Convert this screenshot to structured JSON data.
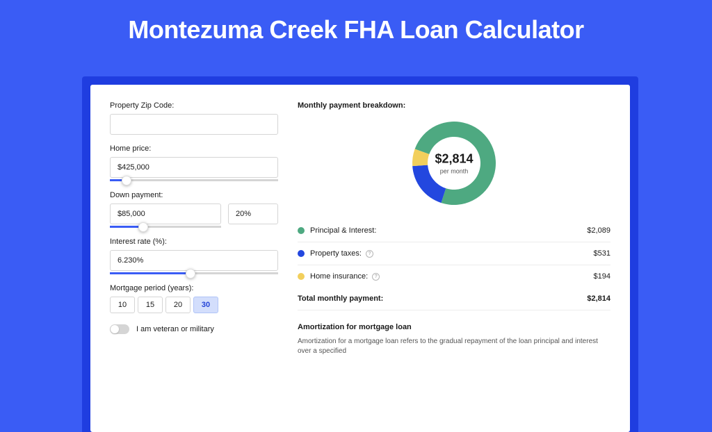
{
  "page": {
    "title": "Montezuma Creek FHA Loan Calculator",
    "background_color": "#3a5cf5",
    "wrapper_color": "#1f3de0"
  },
  "form": {
    "zip": {
      "label": "Property Zip Code:",
      "value": ""
    },
    "home_price": {
      "label": "Home price:",
      "value": "$425,000",
      "slider_pct": 10
    },
    "down_payment": {
      "label": "Down payment:",
      "value": "$85,000",
      "pct": "20%",
      "slider_pct": 30
    },
    "interest_rate": {
      "label": "Interest rate (%):",
      "value": "6.230%",
      "slider_pct": 48
    },
    "mortgage_period": {
      "label": "Mortgage period (years):",
      "options": [
        "10",
        "15",
        "20",
        "30"
      ],
      "selected": "30"
    },
    "veteran": {
      "label": "I am veteran or military",
      "on": false
    }
  },
  "breakdown": {
    "title": "Monthly payment breakdown:",
    "donut": {
      "amount": "$2,814",
      "sub": "per month",
      "segments": [
        {
          "value": 2089,
          "color": "#4ea981",
          "start_angle": -70,
          "sweep": 268
        },
        {
          "value": 531,
          "color": "#2347df",
          "start_angle": 198,
          "sweep": 68
        },
        {
          "value": 194,
          "color": "#f2cf5c",
          "start_angle": 266,
          "sweep": 24
        }
      ],
      "inner_radius": 38,
      "outer_radius": 60
    },
    "items": [
      {
        "label": "Principal & Interest:",
        "value": "$2,089",
        "color": "#4ea981",
        "info": false
      },
      {
        "label": "Property taxes:",
        "value": "$531",
        "color": "#2347df",
        "info": true
      },
      {
        "label": "Home insurance:",
        "value": "$194",
        "color": "#f2cf5c",
        "info": true
      }
    ],
    "total": {
      "label": "Total monthly payment:",
      "value": "$2,814"
    }
  },
  "amortization": {
    "title": "Amortization for mortgage loan",
    "text": "Amortization for a mortgage loan refers to the gradual repayment of the loan principal and interest over a specified"
  }
}
